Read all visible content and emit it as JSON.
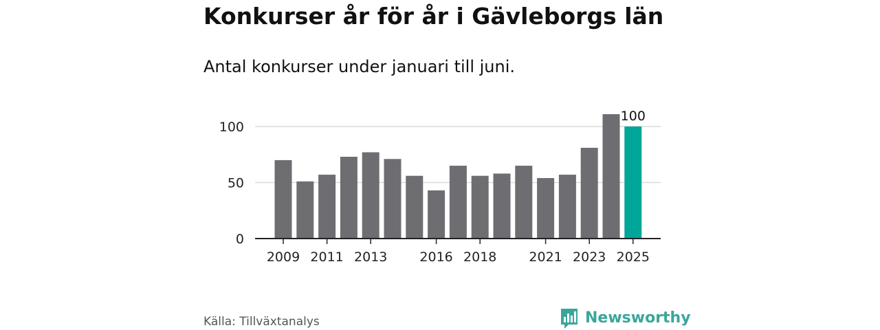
{
  "title": "Konkurser år för år i Gävleborgs län",
  "subtitle": "Antal konkurser under januari till juni.",
  "source": "Källa: Tillväxtanalys",
  "brand": {
    "name": "Newsworthy",
    "logo_icon": "newsworthy-bar-chart-logo-icon",
    "color": "#3aa69b"
  },
  "chart_data": {
    "type": "bar",
    "title": "",
    "xlabel": "",
    "ylabel": "",
    "ylim": [
      0,
      100
    ],
    "y_ticks": [
      0,
      50,
      100
    ],
    "grid": true,
    "categories": [
      "2009",
      "2010",
      "2011",
      "2012",
      "2013",
      "2014",
      "2015",
      "2016",
      "2017",
      "2018",
      "2019",
      "2020",
      "2021",
      "2022",
      "2023",
      "2024",
      "2025"
    ],
    "x_tick_labels": [
      "2009",
      "2011",
      "2013",
      "2016",
      "2018",
      "2021",
      "2023",
      "2025"
    ],
    "values": [
      70,
      51,
      57,
      73,
      77,
      71,
      56,
      43,
      65,
      56,
      58,
      65,
      54,
      57,
      81,
      111,
      100
    ],
    "highlight": {
      "category": "2025",
      "label": "100"
    },
    "colors": {
      "bar": "#6e6d72",
      "highlight": "#00a699"
    }
  }
}
